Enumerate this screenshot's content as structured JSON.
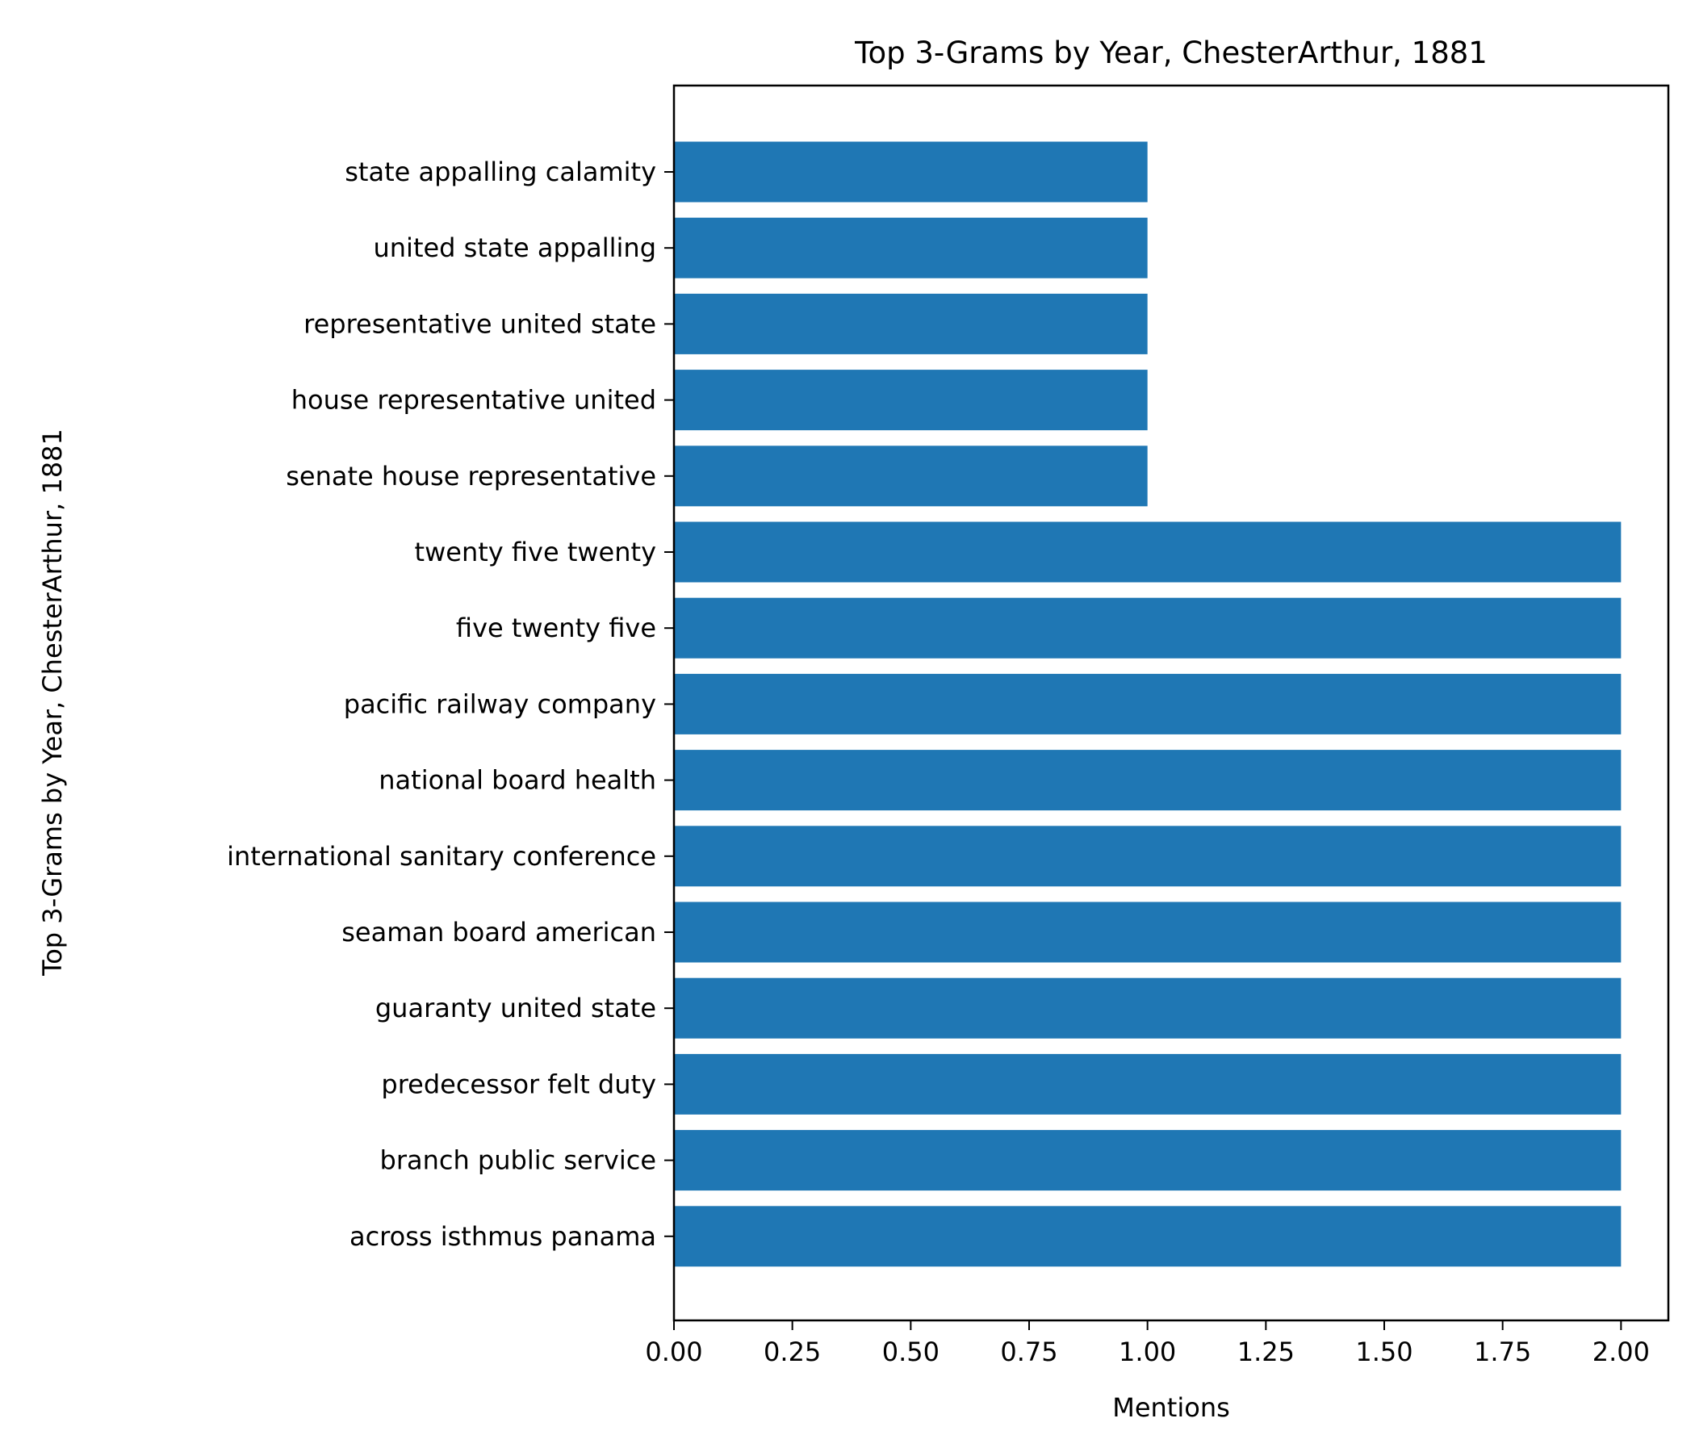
{
  "chart_data": {
    "type": "bar",
    "orientation": "horizontal",
    "title": "Top 3-Grams by Year, ChesterArthur, 1881",
    "xlabel": "Mentions",
    "ylabel": "Top 3-Grams by Year, ChesterArthur, 1881",
    "xlim": [
      0,
      2.1
    ],
    "xticks": [
      "0.00",
      "0.25",
      "0.50",
      "0.75",
      "1.00",
      "1.25",
      "1.50",
      "1.75",
      "2.00"
    ],
    "categories": [
      "state appalling calamity",
      "united state appalling",
      "representative united state",
      "house representative united",
      "senate house representative",
      "twenty five twenty",
      "five twenty five",
      "pacific railway company",
      "national board health",
      "international sanitary conference",
      "seaman board american",
      "guaranty united state",
      "predecessor felt duty",
      "branch public service",
      "across isthmus panama"
    ],
    "values": [
      1,
      1,
      1,
      1,
      1,
      2,
      2,
      2,
      2,
      2,
      2,
      2,
      2,
      2,
      2
    ],
    "bar_color": "#1f77b4",
    "grid": false,
    "legend": "none"
  }
}
